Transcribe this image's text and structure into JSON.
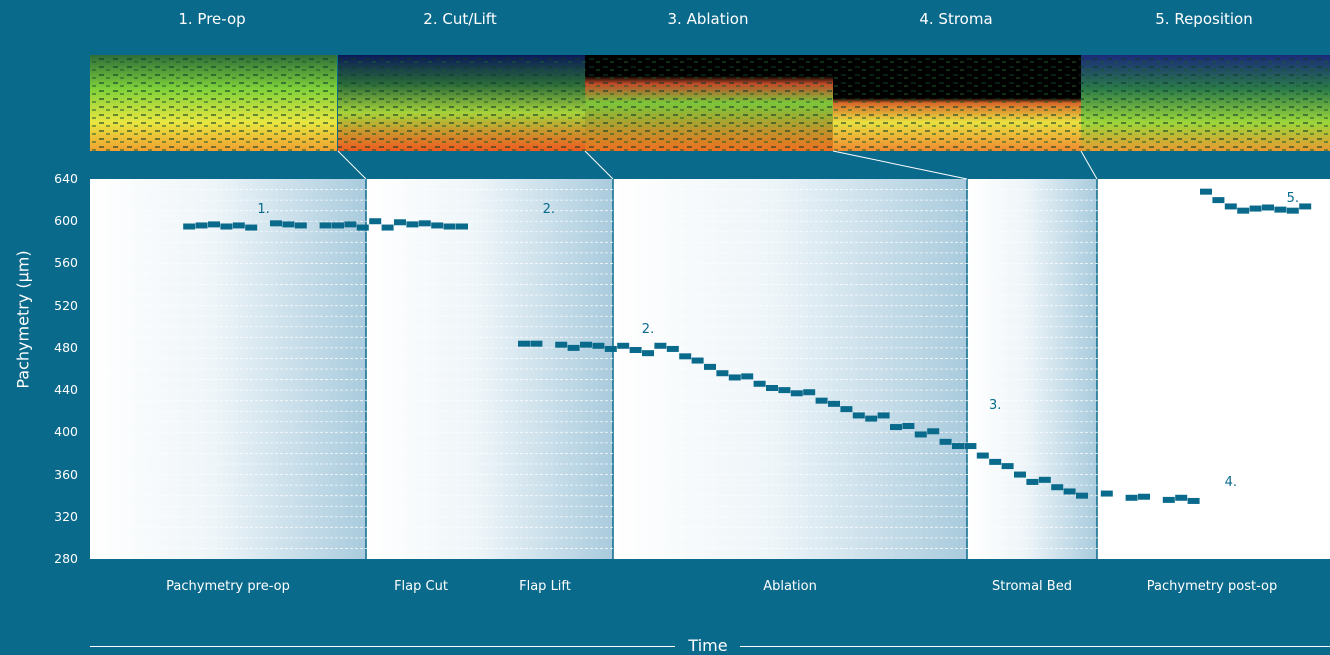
{
  "stages": [
    {
      "label": "1. Pre-op"
    },
    {
      "label": "2. Cut/Lift"
    },
    {
      "label": "3. Ablation"
    },
    {
      "label": "4. Stroma"
    },
    {
      "label": "5. Reposition"
    }
  ],
  "colors": {
    "background": "#0a6a8c",
    "marker": "#0a6a8c",
    "annotation": "#0a6a8c",
    "panel": "#ffffff",
    "grid": "#ffffff"
  },
  "chart_data": {
    "type": "scatter",
    "xlabel": "Time",
    "ylabel": "Pachymetry (µm)",
    "ylim": [
      280,
      640
    ],
    "yticks": [
      640,
      600,
      560,
      520,
      480,
      440,
      400,
      360,
      320,
      280
    ],
    "grid": true,
    "phases": [
      {
        "label": "Pachymetry pre-op"
      },
      {
        "label": "Flap Cut"
      },
      {
        "label": "Flap Lift"
      },
      {
        "label": "Ablation"
      },
      {
        "label": "Stromal Bed"
      },
      {
        "label": "Pachymetry post-op"
      }
    ],
    "annotations": [
      {
        "text": "1.",
        "x": 0.14,
        "y": 608
      },
      {
        "text": "2.",
        "x": 0.37,
        "y": 608
      },
      {
        "text": "2.",
        "x": 0.45,
        "y": 494
      },
      {
        "text": "3.",
        "x": 0.73,
        "y": 422
      },
      {
        "text": "4.",
        "x": 0.92,
        "y": 349
      },
      {
        "text": "5.",
        "x": 0.97,
        "y": 618
      }
    ],
    "series": [
      {
        "points": [
          [
            0.08,
            595
          ],
          [
            0.09,
            596
          ],
          [
            0.1,
            597
          ],
          [
            0.11,
            595
          ],
          [
            0.12,
            596
          ],
          [
            0.13,
            594
          ],
          [
            0.15,
            598
          ],
          [
            0.16,
            597
          ],
          [
            0.17,
            596
          ],
          [
            0.19,
            596
          ],
          [
            0.2,
            596
          ],
          [
            0.21,
            597
          ],
          [
            0.22,
            594
          ],
          [
            0.23,
            600
          ],
          [
            0.24,
            594
          ],
          [
            0.25,
            599
          ],
          [
            0.26,
            597
          ],
          [
            0.27,
            598
          ],
          [
            0.28,
            596
          ],
          [
            0.29,
            595
          ],
          [
            0.3,
            595
          ],
          [
            0.35,
            484
          ],
          [
            0.36,
            484
          ],
          [
            0.38,
            483
          ],
          [
            0.39,
            480
          ],
          [
            0.4,
            483
          ],
          [
            0.41,
            482
          ],
          [
            0.42,
            479
          ],
          [
            0.43,
            482
          ],
          [
            0.44,
            478
          ],
          [
            0.45,
            475
          ],
          [
            0.46,
            482
          ],
          [
            0.47,
            479
          ],
          [
            0.48,
            472
          ],
          [
            0.49,
            468
          ],
          [
            0.5,
            462
          ],
          [
            0.51,
            456
          ],
          [
            0.52,
            452
          ],
          [
            0.53,
            453
          ],
          [
            0.54,
            446
          ],
          [
            0.55,
            442
          ],
          [
            0.56,
            440
          ],
          [
            0.57,
            437
          ],
          [
            0.58,
            438
          ],
          [
            0.59,
            430
          ],
          [
            0.6,
            427
          ],
          [
            0.61,
            422
          ],
          [
            0.62,
            416
          ],
          [
            0.63,
            413
          ],
          [
            0.64,
            416
          ],
          [
            0.65,
            405
          ],
          [
            0.66,
            406
          ],
          [
            0.67,
            398
          ],
          [
            0.68,
            401
          ],
          [
            0.69,
            391
          ],
          [
            0.7,
            387
          ],
          [
            0.71,
            387
          ],
          [
            0.72,
            378
          ],
          [
            0.73,
            372
          ],
          [
            0.74,
            368
          ],
          [
            0.75,
            360
          ],
          [
            0.76,
            353
          ],
          [
            0.77,
            355
          ],
          [
            0.78,
            348
          ],
          [
            0.79,
            344
          ],
          [
            0.8,
            340
          ],
          [
            0.82,
            342
          ],
          [
            0.84,
            338
          ],
          [
            0.85,
            339
          ],
          [
            0.87,
            336
          ],
          [
            0.88,
            338
          ],
          [
            0.89,
            335
          ],
          [
            0.9,
            628
          ],
          [
            0.91,
            620
          ],
          [
            0.92,
            614
          ],
          [
            0.93,
            610
          ],
          [
            0.94,
            612
          ],
          [
            0.95,
            613
          ],
          [
            0.96,
            611
          ],
          [
            0.97,
            610
          ],
          [
            0.98,
            614
          ]
        ]
      }
    ]
  }
}
